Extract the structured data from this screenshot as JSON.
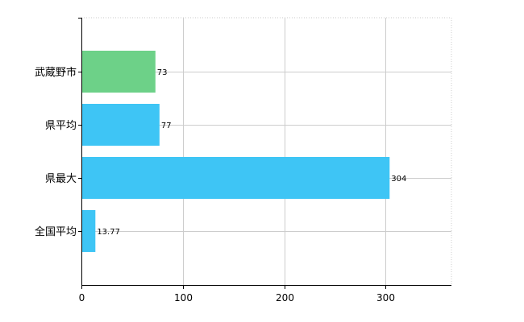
{
  "chart_data": {
    "type": "bar",
    "orientation": "horizontal",
    "categories": [
      "武蔵野市",
      "県平均",
      "県最大",
      "全国平均"
    ],
    "values": [
      73,
      77,
      304,
      13.77
    ],
    "data_labels": [
      "73",
      "77",
      "304",
      "13.77"
    ],
    "colors": [
      "#6dd188",
      "#3ec5f5",
      "#3ec5f5",
      "#3ec5f5"
    ],
    "xlim": [
      0,
      365
    ],
    "xticks": [
      0,
      100,
      200,
      300
    ],
    "xtick_labels": [
      "0",
      "100",
      "200",
      "300"
    ],
    "grid": true,
    "legend": "none"
  }
}
